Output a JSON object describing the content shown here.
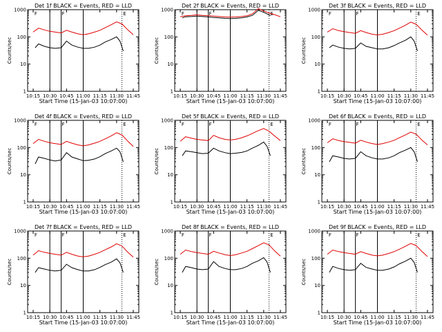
{
  "chart_data": [
    {
      "type": "line",
      "title": "Det 1f BLACK = Events, RED = LLD",
      "xlabel": "Start Time (15-Jan-03 10:07:00)",
      "ylabel": "Counts/sec",
      "yscale": "log",
      "ylim": [
        1,
        1000
      ],
      "yticks": [
        "1",
        "10",
        "100",
        "1000"
      ],
      "xticks": [
        "10:15",
        "10:30",
        "10:45",
        "11:00",
        "11:15",
        "11:30",
        "11:45"
      ],
      "markers": [
        "F",
        "F",
        "E"
      ],
      "series": [
        {
          "color": "#e00000",
          "x": [
            10.25,
            10.33,
            10.42,
            10.5,
            10.58,
            10.67,
            10.75,
            10.83,
            10.92,
            11.0,
            11.08,
            11.17,
            11.25,
            11.33,
            11.42,
            11.5,
            11.58,
            11.67,
            11.75
          ],
          "y": [
            150,
            210,
            180,
            160,
            150,
            140,
            175,
            150,
            130,
            120,
            130,
            150,
            175,
            220,
            280,
            360,
            300,
            180,
            120
          ]
        },
        {
          "color": "#000000",
          "x": [
            10.28,
            10.33,
            10.42,
            10.5,
            10.58,
            10.67,
            10.75,
            10.83,
            10.92,
            11.0,
            11.08,
            11.17,
            11.25,
            11.33,
            11.42,
            11.5,
            11.55,
            11.6
          ],
          "y": [
            40,
            55,
            45,
            40,
            38,
            40,
            70,
            50,
            42,
            38,
            38,
            42,
            50,
            65,
            80,
            100,
            70,
            30
          ]
        }
      ]
    },
    {
      "type": "line",
      "title": "Det 2f BLACK = Events, RED = LLD",
      "xlabel": "Start Time (15-Jan-03 10:07:00)",
      "ylabel": "Counts/sec",
      "yscale": "log",
      "ylim": [
        1,
        1000
      ],
      "yticks": [
        "1",
        "10",
        "100",
        "1000"
      ],
      "xticks": [
        "10:15",
        "10:30",
        "10:45",
        "11:00",
        "11:15",
        "11:30",
        "11:45"
      ],
      "markers": [
        "F",
        "F",
        "E"
      ],
      "series": [
        {
          "color": "#e00000",
          "x": [
            10.25,
            10.33,
            10.42,
            10.5,
            10.58,
            10.67,
            10.75,
            10.83,
            10.92,
            11.0,
            11.08,
            11.17,
            11.25,
            11.33,
            11.42,
            11.5,
            11.58,
            11.67,
            11.75
          ],
          "y": [
            550,
            600,
            620,
            650,
            620,
            600,
            580,
            560,
            540,
            530,
            540,
            560,
            600,
            700,
            1100,
            900,
            750,
            650,
            550
          ]
        },
        {
          "color": "#000000",
          "x": [
            10.28,
            10.33,
            10.42,
            10.5,
            10.58,
            10.67,
            10.75,
            10.83,
            10.92,
            11.0,
            11.08,
            11.17,
            11.25,
            11.33,
            11.42,
            11.5,
            11.55,
            11.6
          ],
          "y": [
            500,
            550,
            560,
            580,
            560,
            540,
            520,
            500,
            480,
            470,
            480,
            500,
            540,
            620,
            950,
            800,
            700,
            600
          ]
        }
      ]
    },
    {
      "type": "line",
      "title": "Det 3f BLACK = Events, RED = LLD",
      "xlabel": "Start Time (15-Jan-03 10:07:00)",
      "ylabel": "Counts/sec",
      "yscale": "log",
      "ylim": [
        1,
        1000
      ],
      "yticks": [
        "1",
        "10",
        "100",
        "1000"
      ],
      "xticks": [
        "10:15",
        "10:30",
        "10:45",
        "11:00",
        "11:15",
        "11:30",
        "11:45"
      ],
      "markers": [
        "F",
        "F",
        "E"
      ],
      "series": [
        {
          "color": "#e00000",
          "x": [
            10.25,
            10.33,
            10.42,
            10.5,
            10.58,
            10.67,
            10.75,
            10.83,
            10.92,
            11.0,
            11.08,
            11.17,
            11.25,
            11.33,
            11.42,
            11.5,
            11.58,
            11.67,
            11.75
          ],
          "y": [
            150,
            200,
            170,
            155,
            145,
            135,
            170,
            145,
            125,
            118,
            125,
            145,
            170,
            210,
            270,
            350,
            290,
            175,
            115
          ]
        },
        {
          "color": "#000000",
          "x": [
            10.28,
            10.33,
            10.42,
            10.5,
            10.58,
            10.67,
            10.75,
            10.83,
            10.92,
            11.0,
            11.08,
            11.17,
            11.25,
            11.33,
            11.42,
            11.5,
            11.55,
            11.6
          ],
          "y": [
            40,
            50,
            42,
            38,
            36,
            38,
            60,
            45,
            40,
            36,
            36,
            40,
            48,
            60,
            75,
            100,
            70,
            30
          ]
        }
      ]
    },
    {
      "type": "line",
      "title": "Det 4f BLACK = Events, RED = LLD",
      "xlabel": "Start Time (15-Jan-03 10:07:00)",
      "ylabel": "Counts/sec",
      "yscale": "log",
      "ylim": [
        1,
        1000
      ],
      "yticks": [
        "1",
        "10",
        "100",
        "1000"
      ],
      "xticks": [
        "10:15",
        "10:30",
        "10:45",
        "11:00",
        "11:15",
        "11:30",
        "11:45"
      ],
      "markers": [
        "F",
        "F",
        "E"
      ],
      "series": [
        {
          "color": "#e00000",
          "x": [
            10.25,
            10.33,
            10.42,
            10.5,
            10.58,
            10.67,
            10.75,
            10.83,
            10.92,
            11.0,
            11.08,
            11.17,
            11.25,
            11.33,
            11.42,
            11.5,
            11.58,
            11.67,
            11.75
          ],
          "y": [
            140,
            200,
            170,
            150,
            140,
            130,
            170,
            145,
            125,
            115,
            125,
            145,
            170,
            210,
            270,
            350,
            290,
            170,
            110
          ]
        },
        {
          "color": "#000000",
          "x": [
            10.28,
            10.33,
            10.42,
            10.5,
            10.58,
            10.67,
            10.75,
            10.83,
            10.92,
            11.0,
            11.08,
            11.17,
            11.25,
            11.33,
            11.42,
            11.5,
            11.55,
            11.6
          ],
          "y": [
            25,
            45,
            40,
            35,
            32,
            35,
            65,
            45,
            38,
            33,
            34,
            38,
            46,
            60,
            75,
            95,
            70,
            30
          ]
        }
      ]
    },
    {
      "type": "line",
      "title": "Det 5f BLACK = Events, RED = LLD",
      "xlabel": "Start Time (15-Jan-03 10:07:00)",
      "ylabel": "Counts/sec",
      "yscale": "log",
      "ylim": [
        1,
        1000
      ],
      "yticks": [
        "1",
        "10",
        "100",
        "1000"
      ],
      "xticks": [
        "10:15",
        "10:30",
        "10:45",
        "11:00",
        "11:15",
        "11:30",
        "11:45"
      ],
      "markers": [
        "F",
        "F",
        "E"
      ],
      "series": [
        {
          "color": "#e00000",
          "x": [
            10.25,
            10.33,
            10.42,
            10.5,
            10.58,
            10.67,
            10.75,
            10.83,
            10.92,
            11.0,
            11.08,
            11.17,
            11.25,
            11.33,
            11.42,
            11.5,
            11.58,
            11.67,
            11.75
          ],
          "y": [
            170,
            250,
            220,
            200,
            190,
            180,
            280,
            230,
            200,
            190,
            200,
            230,
            270,
            330,
            420,
            500,
            400,
            260,
            180
          ]
        },
        {
          "color": "#000000",
          "x": [
            10.28,
            10.33,
            10.42,
            10.5,
            10.58,
            10.67,
            10.75,
            10.83,
            10.92,
            11.0,
            11.08,
            11.17,
            11.25,
            11.33,
            11.42,
            11.5,
            11.55,
            11.6
          ],
          "y": [
            50,
            75,
            70,
            65,
            60,
            62,
            95,
            75,
            65,
            60,
            62,
            66,
            75,
            95,
            120,
            160,
            110,
            50
          ]
        }
      ]
    },
    {
      "type": "line",
      "title": "Det 6f BLACK = Events, RED = LLD",
      "xlabel": "Start Time (15-Jan-03 10:07:00)",
      "ylabel": "Counts/sec",
      "yscale": "log",
      "ylim": [
        1,
        1000
      ],
      "yticks": [
        "1",
        "10",
        "100",
        "1000"
      ],
      "xticks": [
        "10:15",
        "10:30",
        "10:45",
        "11:00",
        "11:15",
        "11:30",
        "11:45"
      ],
      "markers": [
        "F",
        "F",
        "E"
      ],
      "series": [
        {
          "color": "#e00000",
          "x": [
            10.25,
            10.33,
            10.42,
            10.5,
            10.58,
            10.67,
            10.75,
            10.83,
            10.92,
            11.0,
            11.08,
            11.17,
            11.25,
            11.33,
            11.42,
            11.5,
            11.58,
            11.67,
            11.75
          ],
          "y": [
            150,
            210,
            180,
            165,
            155,
            145,
            185,
            160,
            140,
            130,
            140,
            160,
            185,
            230,
            290,
            370,
            310,
            185,
            125
          ]
        },
        {
          "color": "#000000",
          "x": [
            10.28,
            10.33,
            10.42,
            10.5,
            10.58,
            10.67,
            10.75,
            10.83,
            10.92,
            11.0,
            11.08,
            11.17,
            11.25,
            11.33,
            11.42,
            11.5,
            11.55,
            11.6
          ],
          "y": [
            30,
            50,
            45,
            40,
            38,
            40,
            70,
            50,
            42,
            38,
            38,
            42,
            50,
            65,
            80,
            100,
            70,
            30
          ]
        }
      ]
    },
    {
      "type": "line",
      "title": "Det 7f BLACK = Events, RED = LLD",
      "xlabel": "Start Time (15-Jan-03 10:07:00)",
      "ylabel": "Counts/sec",
      "yscale": "log",
      "ylim": [
        1,
        1000
      ],
      "yticks": [
        "1",
        "10",
        "100",
        "1000"
      ],
      "xticks": [
        "10:15",
        "10:30",
        "10:45",
        "11:00",
        "11:15",
        "11:30",
        "11:45"
      ],
      "markers": [
        "F",
        "F",
        "E"
      ],
      "series": [
        {
          "color": "#e00000",
          "x": [
            10.25,
            10.33,
            10.42,
            10.5,
            10.58,
            10.67,
            10.75,
            10.83,
            10.92,
            11.0,
            11.08,
            11.17,
            11.25,
            11.33,
            11.42,
            11.5,
            11.58,
            11.67,
            11.75
          ],
          "y": [
            130,
            190,
            165,
            150,
            140,
            130,
            165,
            140,
            120,
            112,
            120,
            140,
            165,
            205,
            260,
            340,
            280,
            165,
            110
          ]
        },
        {
          "color": "#000000",
          "x": [
            10.28,
            10.33,
            10.42,
            10.5,
            10.58,
            10.67,
            10.75,
            10.83,
            10.92,
            11.0,
            11.08,
            11.17,
            11.25,
            11.33,
            11.42,
            11.5,
            11.55,
            11.6
          ],
          "y": [
            30,
            45,
            40,
            36,
            34,
            36,
            60,
            45,
            38,
            34,
            34,
            38,
            46,
            58,
            72,
            95,
            68,
            30
          ]
        }
      ]
    },
    {
      "type": "line",
      "title": "Det 8f BLACK = Events, RED = LLD",
      "xlabel": "Start Time (15-Jan-03 10:07:00)",
      "ylabel": "Counts/sec",
      "yscale": "log",
      "ylim": [
        1,
        1000
      ],
      "yticks": [
        "1",
        "10",
        "100",
        "1000"
      ],
      "xticks": [
        "10:15",
        "10:30",
        "10:45",
        "11:00",
        "11:15",
        "11:30",
        "11:45"
      ],
      "markers": [
        "F",
        "F",
        "E"
      ],
      "series": [
        {
          "color": "#e00000",
          "x": [
            10.25,
            10.33,
            10.42,
            10.5,
            10.58,
            10.67,
            10.75,
            10.83,
            10.92,
            11.0,
            11.08,
            11.17,
            11.25,
            11.33,
            11.42,
            11.5,
            11.58,
            11.67,
            11.75
          ],
          "y": [
            140,
            200,
            175,
            160,
            150,
            140,
            180,
            155,
            135,
            125,
            135,
            155,
            180,
            225,
            290,
            370,
            310,
            180,
            120
          ]
        },
        {
          "color": "#000000",
          "x": [
            10.28,
            10.33,
            10.42,
            10.5,
            10.58,
            10.67,
            10.75,
            10.83,
            10.92,
            11.0,
            11.08,
            11.17,
            11.25,
            11.33,
            11.42,
            11.5,
            11.55,
            11.6
          ],
          "y": [
            30,
            50,
            45,
            40,
            38,
            40,
            75,
            50,
            42,
            38,
            38,
            42,
            50,
            65,
            80,
            105,
            72,
            30
          ]
        }
      ]
    },
    {
      "type": "line",
      "title": "Det 9f BLACK = Events, RED = LLD",
      "xlabel": "Start Time (15-Jan-03 10:07:00)",
      "ylabel": "Counts/sec",
      "yscale": "log",
      "ylim": [
        1,
        1000
      ],
      "yticks": [
        "1",
        "10",
        "100",
        "1000"
      ],
      "xticks": [
        "10:15",
        "10:30",
        "10:45",
        "11:00",
        "11:15",
        "11:30",
        "11:45"
      ],
      "markers": [
        "F",
        "F",
        "E"
      ],
      "series": [
        {
          "color": "#e00000",
          "x": [
            10.25,
            10.33,
            10.42,
            10.5,
            10.58,
            10.67,
            10.75,
            10.83,
            10.92,
            11.0,
            11.08,
            11.17,
            11.25,
            11.33,
            11.42,
            11.5,
            11.58,
            11.67,
            11.75
          ],
          "y": [
            140,
            200,
            175,
            160,
            150,
            140,
            175,
            150,
            130,
            122,
            130,
            150,
            175,
            215,
            275,
            350,
            290,
            175,
            115
          ]
        },
        {
          "color": "#000000",
          "x": [
            10.28,
            10.33,
            10.42,
            10.5,
            10.58,
            10.67,
            10.75,
            10.83,
            10.92,
            11.0,
            11.08,
            11.17,
            11.25,
            11.33,
            11.42,
            11.5,
            11.55,
            11.6
          ],
          "y": [
            30,
            50,
            42,
            38,
            36,
            38,
            65,
            46,
            40,
            36,
            36,
            40,
            48,
            62,
            78,
            100,
            70,
            30
          ]
        }
      ]
    }
  ]
}
